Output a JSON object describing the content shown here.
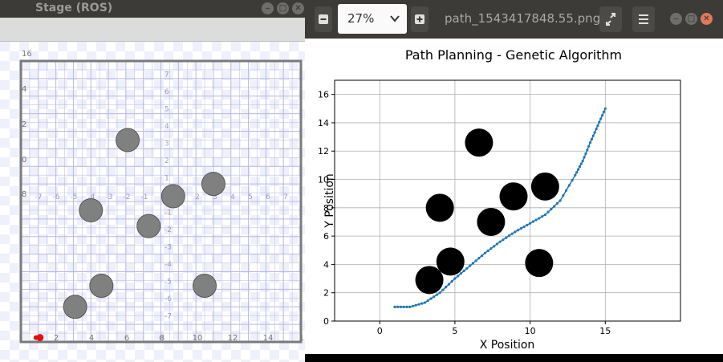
{
  "stage": {
    "title": "Stage (ROS)",
    "axis_labels": {
      "y_left": [
        "16",
        "4",
        "2",
        "0",
        "8"
      ],
      "bottom": [
        "2",
        "4",
        "6",
        "8",
        "10",
        "12",
        "14",
        "1"
      ],
      "center_row": [
        "-7",
        "-6",
        "-5",
        "-4",
        "-3",
        "-2",
        "-1",
        "1",
        "2",
        "3",
        "4",
        "5",
        "6",
        "7"
      ],
      "center_col": [
        "7",
        "6",
        "5",
        "4",
        "3",
        "2",
        "1",
        "-1",
        "-2",
        "-3",
        "-4",
        "-5",
        "-6",
        "-7"
      ],
      "origin": "0"
    },
    "obstacles_world": [
      {
        "x": 6.1,
        "y": 11.5
      },
      {
        "x": 11.0,
        "y": 9.0
      },
      {
        "x": 8.7,
        "y": 8.3
      },
      {
        "x": 4.0,
        "y": 7.5
      },
      {
        "x": 7.3,
        "y": 6.6
      },
      {
        "x": 4.6,
        "y": 3.2
      },
      {
        "x": 10.5,
        "y": 3.2
      },
      {
        "x": 3.1,
        "y": 2.0
      }
    ],
    "robot_world": {
      "x": 1.0,
      "y": 0.2
    },
    "colors": {
      "obstacle": "#808080",
      "robot": "#e01010",
      "grid": "#b8b8e6",
      "border": "#777777"
    }
  },
  "viewer": {
    "zoom": "27%",
    "file_name": "path_1543417848.55.png",
    "icons": [
      "minus-icon",
      "plus-icon",
      "expand-icon",
      "menu-icon",
      "minimize-icon",
      "maximize-icon",
      "close-icon",
      "chevron-down-icon"
    ]
  },
  "chart_data": {
    "type": "scatter",
    "title": "Path Planning - Genetic Algorithm",
    "xlabel": "X Position",
    "ylabel": "Y Position",
    "xlim": [
      -3,
      20
    ],
    "ylim": [
      0,
      17
    ],
    "xticks": [
      0,
      5,
      10,
      15
    ],
    "yticks": [
      0,
      2,
      4,
      6,
      8,
      10,
      12,
      14,
      16
    ],
    "grid": true,
    "obstacles": [
      {
        "x": 6.6,
        "y": 12.6
      },
      {
        "x": 4.0,
        "y": 8.0
      },
      {
        "x": 7.4,
        "y": 7.0
      },
      {
        "x": 8.9,
        "y": 8.8
      },
      {
        "x": 11.0,
        "y": 9.5
      },
      {
        "x": 4.7,
        "y": 4.2
      },
      {
        "x": 3.3,
        "y": 2.9
      },
      {
        "x": 10.6,
        "y": 4.1
      }
    ],
    "path": {
      "x": [
        1.0,
        2.0,
        3.0,
        4.0,
        5.0,
        6.0,
        7.0,
        8.0,
        9.0,
        10.0,
        11.0,
        12.0,
        13.0,
        13.5,
        14.0,
        14.5,
        15.0
      ],
      "y": [
        1.0,
        1.0,
        1.3,
        2.0,
        3.0,
        3.9,
        4.8,
        5.6,
        6.3,
        6.9,
        7.5,
        8.5,
        10.3,
        11.3,
        12.6,
        13.8,
        15.0
      ]
    },
    "colors": {
      "path": "#1f77b4",
      "obstacle": "#000000"
    }
  }
}
